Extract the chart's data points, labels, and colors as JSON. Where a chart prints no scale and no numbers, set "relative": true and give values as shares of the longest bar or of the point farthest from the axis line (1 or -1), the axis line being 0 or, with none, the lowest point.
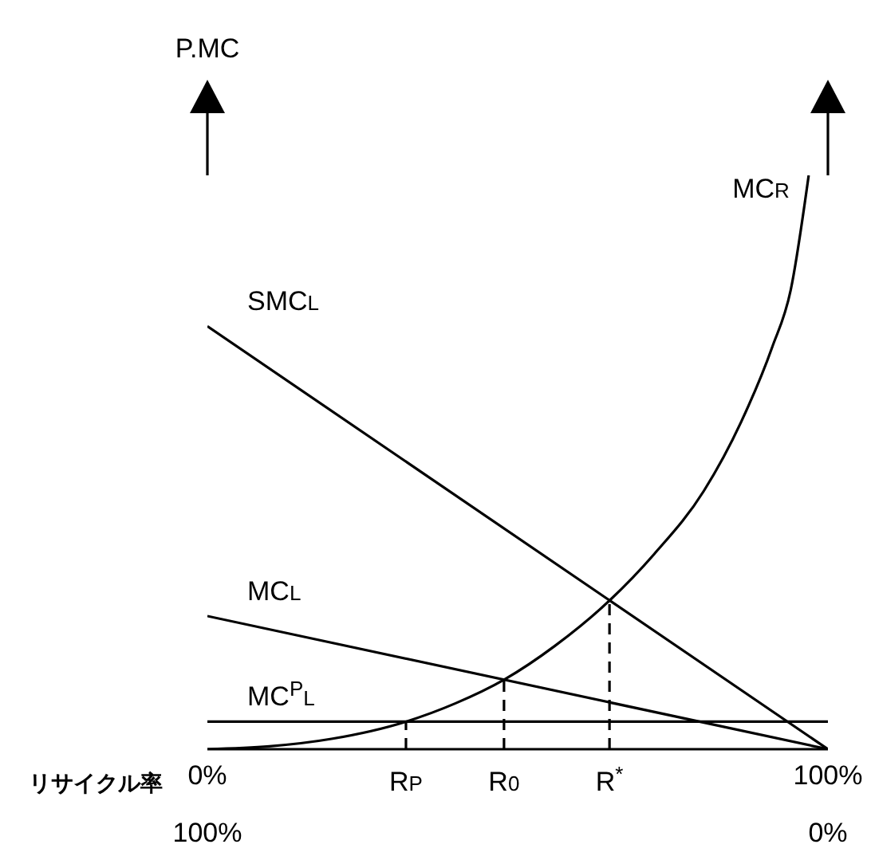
{
  "chart_data": {
    "type": "line",
    "relative": true,
    "ylabel": "P.MC",
    "xlabel": "リサイクル率",
    "marker": "none",
    "xlim": [
      0,
      100
    ],
    "xticks": [
      {
        "value": 0,
        "label": "0%"
      },
      {
        "value": 100,
        "label": "100%"
      }
    ],
    "x2lim": [
      100,
      0
    ],
    "x2ticks": [
      {
        "value": 100,
        "label": "100%"
      },
      {
        "value": 0,
        "label": "0%"
      }
    ],
    "annotations": [
      {
        "text": "R$_{P}$",
        "x": 32,
        "y": 0
      },
      {
        "text": "R$_{0}$",
        "x": 47.8,
        "y": 0
      },
      {
        "text": "R$^{*}$",
        "x": 64.8,
        "y": 0
      }
    ],
    "series": [
      {
        "name": "SMC$_{L}$",
        "color": "#000000",
        "x": [
          0,
          100
        ],
        "values": [
          0.737,
          0
        ]
      },
      {
        "name": "MC$_{L}$",
        "color": "#000000",
        "x": [
          0,
          100
        ],
        "values": [
          0.232,
          0
        ]
      },
      {
        "name": "MC$^{P}$$_{L}$",
        "color": "#000000",
        "x": [
          0,
          100
        ],
        "values": [
          0.048,
          0.048
        ]
      },
      {
        "name": "MC$_{R}$",
        "color": "#000000",
        "x": [
          0,
          10,
          20,
          32,
          40,
          47.8,
          56,
          64.8,
          72,
          80,
          86,
          91,
          94,
          96.9
        ],
        "values": [
          0,
          0.005,
          0.018,
          0.048,
          0.08,
          0.121,
          0.18,
          0.259,
          0.34,
          0.45,
          0.57,
          0.7,
          0.8,
          1
        ]
      },
      {
        "color": "#000000",
        "line_style": "dashed",
        "x": [
          32,
          32
        ],
        "values": [
          0,
          0.048
        ]
      },
      {
        "color": "#000000",
        "line_style": "dashed",
        "x": [
          47.8,
          47.8
        ],
        "values": [
          0,
          0.121
        ]
      },
      {
        "color": "#000000",
        "line_style": "dashed",
        "x": [
          64.8,
          64.8
        ],
        "values": [
          0,
          0.259
        ]
      }
    ]
  }
}
